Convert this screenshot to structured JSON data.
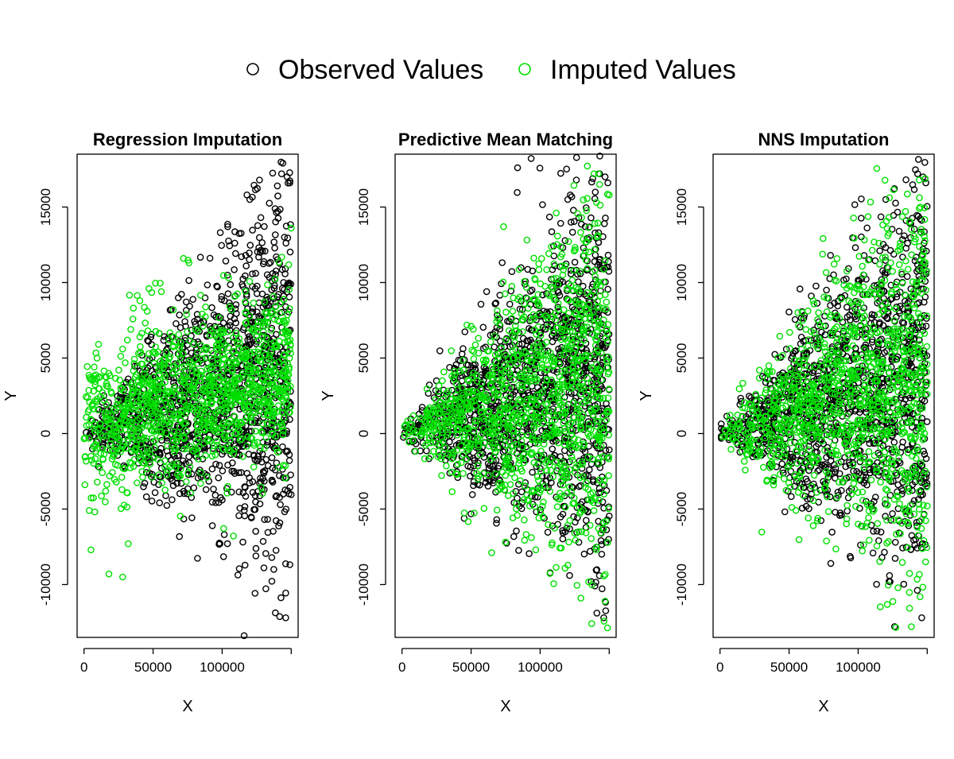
{
  "legend": {
    "items": [
      {
        "label": "Observed Values",
        "color": "#000000"
      },
      {
        "label": "Imputed Values",
        "color": "#00e000"
      }
    ]
  },
  "chart_data": [
    {
      "type": "scatter",
      "title": "Regression Imputation",
      "xlabel": "X",
      "ylabel": "Y",
      "xlim": [
        -5000,
        155000
      ],
      "ylim": [
        -13500,
        18500
      ],
      "xticks": [
        0,
        50000,
        100000
      ],
      "xtick_labels": [
        "0",
        "50000",
        "100000"
      ],
      "yticks": [
        -10000,
        -5000,
        0,
        5000,
        10000,
        15000
      ],
      "ytick_labels": [
        "-10000",
        "-5000",
        "0",
        "5000",
        "10000",
        "15000"
      ],
      "series": [
        {
          "name": "Observed Values",
          "color": "#000000",
          "pattern": "fan",
          "n": 1300,
          "highlights": [
            [
              143000,
              17200
            ],
            [
              147000,
              17000
            ],
            [
              149000,
              16600
            ],
            [
              140000,
              16400
            ],
            [
              120000,
              15500
            ],
            [
              128000,
              14300
            ],
            [
              146000,
              -12200
            ]
          ]
        },
        {
          "name": "Imputed Values",
          "color": "#00e000",
          "pattern": "regression",
          "n": 1100,
          "highlights": [
            [
              72000,
              11600
            ],
            [
              76000,
              11300
            ],
            [
              47000,
              9600
            ],
            [
              56000,
              9400
            ],
            [
              5000,
              -7700
            ],
            [
              18000,
              -9300
            ],
            [
              28000,
              -9500
            ],
            [
              32000,
              -7300
            ],
            [
              150000,
              13600
            ]
          ]
        }
      ]
    },
    {
      "type": "scatter",
      "title": "Predictive Mean Matching",
      "xlabel": "X",
      "ylabel": "Y",
      "xlim": [
        -5000,
        155000
      ],
      "ylim": [
        -13500,
        18500
      ],
      "xticks": [
        0,
        50000,
        100000
      ],
      "xtick_labels": [
        "0",
        "50000",
        "100000"
      ],
      "yticks": [
        -10000,
        -5000,
        0,
        5000,
        10000,
        15000
      ],
      "ytick_labels": [
        "-10000",
        "-5000",
        "0",
        "5000",
        "10000",
        "15000"
      ],
      "series": [
        {
          "name": "Observed Values",
          "color": "#000000",
          "pattern": "fan",
          "n": 1300,
          "highlights": [
            [
              143000,
              17200
            ],
            [
              147000,
              17000
            ],
            [
              149000,
              16600
            ],
            [
              120000,
              15500
            ],
            [
              128000,
              14300
            ],
            [
              146000,
              -12200
            ],
            [
              128000,
              -7200
            ]
          ]
        },
        {
          "name": "Imputed Values",
          "color": "#00e000",
          "pattern": "fan",
          "n": 1100,
          "highlights": [
            [
              139000,
              17200
            ],
            [
              143000,
              16500
            ],
            [
              130000,
              14300
            ],
            [
              125000,
              -6600
            ],
            [
              130000,
              -6500
            ],
            [
              50000,
              7100
            ]
          ]
        }
      ]
    },
    {
      "type": "scatter",
      "title": "NNS Imputation",
      "xlabel": "X",
      "ylabel": "Y",
      "xlim": [
        -5000,
        155000
      ],
      "ylim": [
        -13500,
        18500
      ],
      "xticks": [
        0,
        50000,
        100000
      ],
      "xtick_labels": [
        "0",
        "50000",
        "100000"
      ],
      "yticks": [
        -10000,
        -5000,
        0,
        5000,
        10000,
        15000
      ],
      "ytick_labels": [
        "-10000",
        "-5000",
        "0",
        "5000",
        "10000",
        "15000"
      ],
      "series": [
        {
          "name": "Observed Values",
          "color": "#000000",
          "pattern": "fan",
          "n": 1300,
          "highlights": [
            [
              143000,
              17200
            ],
            [
              147000,
              17000
            ],
            [
              149000,
              16600
            ],
            [
              120000,
              15500
            ],
            [
              146000,
              -12200
            ],
            [
              127000,
              -7200
            ],
            [
              80000,
              11800
            ]
          ]
        },
        {
          "name": "Imputed Values",
          "color": "#00e000",
          "pattern": "fan",
          "n": 1100,
          "highlights": [
            [
              145000,
              15000
            ],
            [
              150000,
              -4800
            ],
            [
              100000,
              -6000
            ],
            [
              60000,
              7500
            ]
          ]
        }
      ]
    }
  ]
}
